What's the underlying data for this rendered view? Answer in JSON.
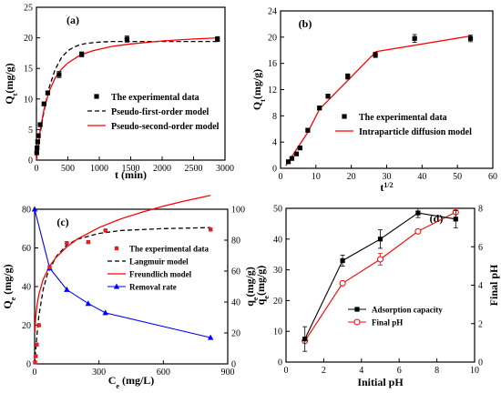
{
  "chart_data": [
    {
      "panel": "(a)",
      "type": "scatter",
      "xlabel": "t (min)",
      "ylabel": "Qt(mg/g)",
      "xlim": [
        0,
        3000
      ],
      "ylim": [
        0,
        25
      ],
      "xticks": [
        0,
        500,
        1000,
        1500,
        2000,
        2500,
        3000
      ],
      "yticks": [
        0,
        5,
        10,
        15,
        20,
        25
      ],
      "legend_position": "center-right",
      "series": [
        {
          "name": "The experimental data",
          "kind": "points",
          "color": "#000000",
          "x": [
            5,
            10,
            20,
            30,
            60,
            120,
            180,
            360,
            720,
            1440,
            2880
          ],
          "y": [
            1.2,
            2.0,
            3.0,
            4.0,
            5.8,
            9.2,
            11.0,
            14.0,
            17.3,
            19.8,
            19.8
          ],
          "err": [
            0.3,
            0.3,
            0.3,
            0.3,
            0.3,
            0.3,
            0.3,
            0.5,
            0.4,
            0.5,
            0.4
          ]
        },
        {
          "name": "Pseudo-first-order model",
          "kind": "line",
          "dash": "dashed",
          "color": "#000000",
          "x": [
            0,
            20,
            60,
            120,
            200,
            300,
            400,
            500,
            600,
            700,
            800,
            1000,
            1200,
            1500,
            2000,
            2500,
            2900
          ],
          "y": [
            0,
            1.5,
            4.4,
            8.0,
            11.8,
            14.9,
            16.8,
            17.9,
            18.5,
            18.9,
            19.1,
            19.3,
            19.4,
            19.4,
            19.4,
            19.4,
            19.4
          ]
        },
        {
          "name": "Pseudo-second-order model",
          "kind": "line",
          "dash": "solid",
          "color": "#ff0000",
          "x": [
            0,
            20,
            60,
            120,
            200,
            300,
            400,
            500,
            700,
            900,
            1200,
            1500,
            2000,
            2500,
            2900
          ],
          "y": [
            0,
            1.8,
            4.9,
            8.3,
            11.2,
            13.5,
            14.9,
            15.9,
            17.2,
            17.9,
            18.6,
            19.0,
            19.5,
            19.8,
            20.0
          ]
        }
      ]
    },
    {
      "panel": "(b)",
      "type": "scatter",
      "xlabel": "t1/2",
      "ylabel": "Qt(mg/g)",
      "xlim": [
        0,
        60
      ],
      "ylim": [
        0,
        24
      ],
      "xticks": [
        0,
        10,
        20,
        30,
        40,
        50,
        60
      ],
      "yticks": [
        0,
        4,
        8,
        12,
        16,
        20,
        24
      ],
      "legend_position": "center-right",
      "series": [
        {
          "name": "The experimental data",
          "kind": "points",
          "color": "#000000",
          "x": [
            2.2,
            3.2,
            4.5,
            5.5,
            7.7,
            11,
            13.4,
            19,
            26.8,
            37.9,
            53.7
          ],
          "y": [
            1.0,
            1.5,
            2.2,
            3.1,
            5.8,
            9.2,
            11.0,
            14.0,
            17.3,
            19.8,
            19.8
          ],
          "err": [
            0.2,
            0.2,
            0.2,
            0.2,
            0.3,
            0.3,
            0.3,
            0.4,
            0.4,
            0.6,
            0.5
          ]
        },
        {
          "name": "Intraparticle diffusion model",
          "kind": "line",
          "dash": "solid",
          "color": "#ff0000",
          "x": [
            1.5,
            7.7,
            11,
            27,
            54
          ],
          "y": [
            0.4,
            5.5,
            9.0,
            17.8,
            20.2
          ]
        }
      ]
    },
    {
      "panel": "(c)",
      "type": "scatter",
      "xlabel": "Ce (mg/L)",
      "ylabel": "Qe (mg/g)",
      "ylabel_right": "qe(mg/g)",
      "xlim": [
        0,
        900
      ],
      "ylim": [
        0,
        80
      ],
      "ylim_right": [
        0,
        100
      ],
      "xticks": [
        0,
        300,
        600,
        900
      ],
      "yticks": [
        0,
        20,
        40,
        60,
        80
      ],
      "yticks_right": [
        0,
        20,
        40,
        60,
        80,
        100
      ],
      "legend_position": "center-right",
      "series": [
        {
          "name": "The experimental data",
          "kind": "points",
          "color": "#e02020",
          "x": [
            2,
            5,
            10,
            20,
            70,
            150,
            250,
            330,
            820
          ],
          "y": [
            0.8,
            4.0,
            10.0,
            20.0,
            50.0,
            62.5,
            63.0,
            69.0,
            69.5
          ]
        },
        {
          "name": "Langmuir model",
          "kind": "line",
          "dash": "dashed",
          "color": "#000000",
          "x": [
            0,
            10,
            20,
            40,
            60,
            100,
            150,
            200,
            300,
            400,
            600,
            820
          ],
          "y": [
            0,
            14,
            25,
            38.5,
            46.5,
            55.5,
            61.5,
            64.5,
            67.5,
            69.0,
            70.0,
            70.5
          ]
        },
        {
          "name": "Freundlich model",
          "kind": "line",
          "dash": "solid",
          "color": "#ff0000",
          "x": [
            1,
            5,
            10,
            20,
            40,
            70,
            100,
            150,
            200,
            300,
            400,
            500,
            600,
            700,
            820
          ],
          "y": [
            15.8,
            24.4,
            29.7,
            36.0,
            43.7,
            50.6,
            55.1,
            60.5,
            64.6,
            70.5,
            74.9,
            78.5,
            81.6,
            84.3,
            87.2
          ]
        },
        {
          "name": "Removal rate",
          "kind": "line-markers",
          "axis": "right",
          "color": "#0000ff",
          "x": [
            0,
            70,
            150,
            250,
            330,
            820
          ],
          "y": [
            100,
            62,
            48,
            39,
            33,
            17
          ]
        }
      ]
    },
    {
      "panel": "(d)",
      "type": "line",
      "xlabel": "Initial pH",
      "ylabel": "qe(mg/g)",
      "ylabel_right": "Final pH",
      "xlim": [
        0,
        10
      ],
      "ylim": [
        0,
        50
      ],
      "ylim_right": [
        0,
        8
      ],
      "xticks": [
        0,
        2,
        4,
        6,
        8,
        10
      ],
      "yticks": [
        0,
        10,
        20,
        30,
        40,
        50
      ],
      "yticks_right": [
        0,
        2,
        4,
        6,
        8
      ],
      "legend_position": "bottom-right",
      "series": [
        {
          "name": "Adsorption capacity",
          "axis": "left",
          "color": "#000000",
          "marker": "filled-square",
          "x": [
            1,
            3,
            5,
            7,
            9
          ],
          "y": [
            7.5,
            33,
            40,
            48.5,
            46.5
          ],
          "err": [
            4.0,
            1.8,
            3.0,
            1.5,
            2.8
          ]
        },
        {
          "name": "Final pH",
          "axis": "right",
          "color": "#ff0000",
          "marker": "open-circle",
          "x": [
            1,
            3,
            5,
            7,
            9
          ],
          "y": [
            1.1,
            4.1,
            5.35,
            6.8,
            7.8
          ],
          "err": [
            0,
            0,
            0.3,
            0,
            0
          ]
        }
      ]
    }
  ]
}
